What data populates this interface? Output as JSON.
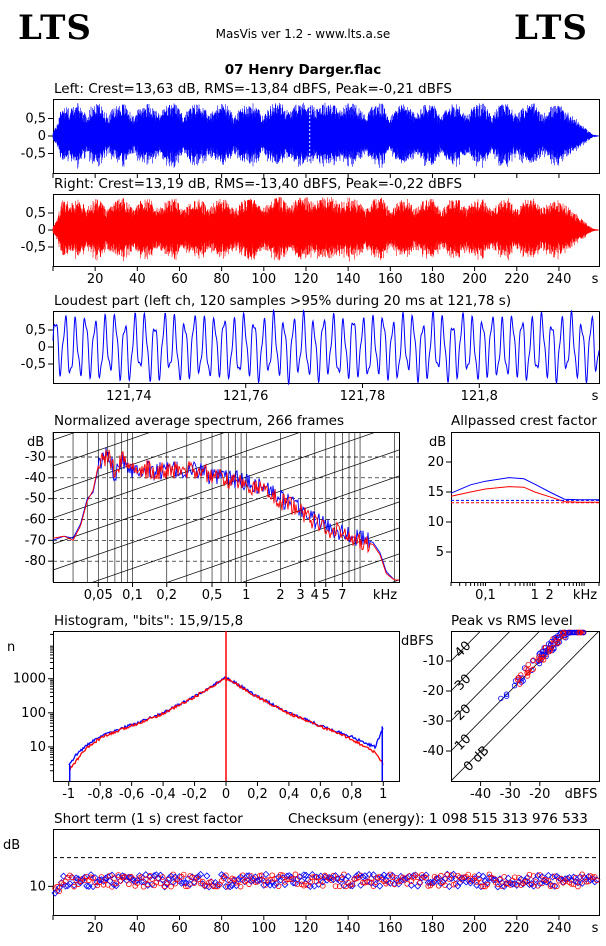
{
  "header": {
    "logo_left": "LTS",
    "logo_right": "LTS",
    "app": "MasVis ver 1.2 - www.lts.a.se",
    "file": "07 Henry Darger.flac"
  },
  "colors": {
    "left": "#0000ff",
    "right": "#ff0000",
    "text": "#000000"
  },
  "chart_data": [
    {
      "id": "left-waveform",
      "type": "area",
      "title": "Left: Crest=13,63 dB, RMS=-13,84 dBFS, Peak=-0,21 dBFS",
      "xlim": [
        0,
        259
      ],
      "ylim": [
        -1,
        1
      ],
      "yticks": [
        "0,5",
        "0",
        "-0,5"
      ],
      "xtick_values": [
        20,
        40,
        60,
        80,
        100,
        120,
        140,
        160,
        180,
        200,
        220,
        240
      ],
      "xunit": "s",
      "marker_x": 121.78,
      "envelope": [
        [
          0,
          0.12
        ],
        [
          2,
          0.35
        ],
        [
          4,
          0.9
        ],
        [
          8,
          0.8
        ],
        [
          12,
          0.95
        ],
        [
          16,
          0.6
        ],
        [
          18,
          0.85
        ],
        [
          22,
          0.95
        ],
        [
          26,
          0.6
        ],
        [
          30,
          0.9
        ],
        [
          34,
          0.95
        ],
        [
          38,
          0.55
        ],
        [
          42,
          0.9
        ],
        [
          46,
          0.95
        ],
        [
          50,
          0.65
        ],
        [
          54,
          0.9
        ],
        [
          58,
          0.95
        ],
        [
          62,
          0.6
        ],
        [
          66,
          0.9
        ],
        [
          70,
          0.95
        ],
        [
          74,
          0.6
        ],
        [
          78,
          0.9
        ],
        [
          82,
          0.95
        ],
        [
          86,
          0.55
        ],
        [
          90,
          0.9
        ],
        [
          95,
          0.95
        ],
        [
          100,
          0.6
        ],
        [
          104,
          0.95
        ],
        [
          108,
          0.98
        ],
        [
          112,
          0.7
        ],
        [
          116,
          0.95
        ],
        [
          120,
          0.99
        ],
        [
          124,
          0.85
        ],
        [
          128,
          0.96
        ],
        [
          132,
          0.99
        ],
        [
          136,
          0.75
        ],
        [
          140,
          0.95
        ],
        [
          144,
          0.92
        ],
        [
          148,
          0.6
        ],
        [
          152,
          0.9
        ],
        [
          156,
          0.95
        ],
        [
          160,
          0.55
        ],
        [
          164,
          0.9
        ],
        [
          168,
          0.95
        ],
        [
          172,
          0.6
        ],
        [
          176,
          0.9
        ],
        [
          180,
          0.95
        ],
        [
          184,
          0.55
        ],
        [
          188,
          0.9
        ],
        [
          192,
          0.95
        ],
        [
          196,
          0.6
        ],
        [
          200,
          0.9
        ],
        [
          204,
          0.95
        ],
        [
          208,
          0.6
        ],
        [
          212,
          0.9
        ],
        [
          216,
          0.95
        ],
        [
          220,
          0.6
        ],
        [
          224,
          0.9
        ],
        [
          228,
          0.95
        ],
        [
          232,
          0.6
        ],
        [
          236,
          0.85
        ],
        [
          240,
          0.9
        ],
        [
          244,
          0.7
        ],
        [
          248,
          0.5
        ],
        [
          252,
          0.25
        ],
        [
          256,
          0.05
        ],
        [
          259,
          0.01
        ]
      ]
    },
    {
      "id": "right-waveform",
      "type": "area",
      "title": "Right: Crest=13,19 dB, RMS=-13,40 dBFS, Peak=-0,22 dBFS",
      "xlim": [
        0,
        259
      ],
      "ylim": [
        -1,
        1
      ],
      "yticks": [
        "0,5",
        "0",
        "-0,5"
      ],
      "xtick_labels": [
        "20",
        "40",
        "60",
        "80",
        "100",
        "120",
        "140",
        "160",
        "180",
        "200",
        "220",
        "240",
        "s"
      ],
      "xtick_values": [
        20,
        40,
        60,
        80,
        100,
        120,
        140,
        160,
        180,
        200,
        220,
        240
      ],
      "envelope": [
        [
          0,
          0.1
        ],
        [
          2,
          0.3
        ],
        [
          4,
          0.9
        ],
        [
          8,
          0.85
        ],
        [
          12,
          0.95
        ],
        [
          16,
          0.65
        ],
        [
          18,
          0.85
        ],
        [
          22,
          0.95
        ],
        [
          26,
          0.6
        ],
        [
          30,
          0.9
        ],
        [
          34,
          0.95
        ],
        [
          38,
          0.6
        ],
        [
          42,
          0.9
        ],
        [
          46,
          0.96
        ],
        [
          50,
          0.65
        ],
        [
          54,
          0.9
        ],
        [
          58,
          0.95
        ],
        [
          62,
          0.6
        ],
        [
          66,
          0.9
        ],
        [
          70,
          0.95
        ],
        [
          74,
          0.65
        ],
        [
          78,
          0.9
        ],
        [
          82,
          0.95
        ],
        [
          86,
          0.6
        ],
        [
          90,
          0.9
        ],
        [
          95,
          0.95
        ],
        [
          100,
          0.65
        ],
        [
          104,
          0.95
        ],
        [
          108,
          0.98
        ],
        [
          112,
          0.7
        ],
        [
          116,
          0.95
        ],
        [
          120,
          0.99
        ],
        [
          124,
          0.85
        ],
        [
          128,
          0.96
        ],
        [
          132,
          0.99
        ],
        [
          136,
          0.8
        ],
        [
          140,
          0.96
        ],
        [
          144,
          0.92
        ],
        [
          148,
          0.6
        ],
        [
          152,
          0.9
        ],
        [
          156,
          0.95
        ],
        [
          160,
          0.6
        ],
        [
          164,
          0.9
        ],
        [
          168,
          0.95
        ],
        [
          172,
          0.65
        ],
        [
          176,
          0.9
        ],
        [
          180,
          0.95
        ],
        [
          184,
          0.6
        ],
        [
          188,
          0.9
        ],
        [
          192,
          0.95
        ],
        [
          196,
          0.65
        ],
        [
          200,
          0.9
        ],
        [
          204,
          0.95
        ],
        [
          208,
          0.6
        ],
        [
          212,
          0.9
        ],
        [
          216,
          0.95
        ],
        [
          220,
          0.6
        ],
        [
          224,
          0.9
        ],
        [
          228,
          0.95
        ],
        [
          232,
          0.65
        ],
        [
          236,
          0.85
        ],
        [
          240,
          0.9
        ],
        [
          244,
          0.7
        ],
        [
          248,
          0.5
        ],
        [
          252,
          0.25
        ],
        [
          256,
          0.05
        ],
        [
          259,
          0.01
        ]
      ]
    },
    {
      "id": "loudest-part",
      "type": "line",
      "title": "Loudest part (left  ch, 120 samples >95% during 20 ms at 121,78 s)",
      "xlim": [
        121.727,
        121.8205
      ],
      "ylim": [
        -1,
        1
      ],
      "yticks": [
        "0,5",
        "0",
        "-0,5"
      ],
      "xtick_labels": [
        "121,74",
        "121,76",
        "121,78",
        "121,8",
        "s"
      ],
      "xtick_values": [
        121.74,
        121.76,
        121.78,
        121.8
      ],
      "cycles": 55
    },
    {
      "id": "average-spectrum",
      "type": "line",
      "title": "Normalized average spectrum, 266 frames",
      "ylabel": "dB",
      "yticks": [
        {
          "v": -30,
          "t": "-30"
        },
        {
          "v": -40,
          "t": "-40"
        },
        {
          "v": -50,
          "t": "-50"
        },
        {
          "v": -60,
          "t": "-60"
        },
        {
          "v": -70,
          "t": "-70"
        },
        {
          "v": -80,
          "t": "-80"
        }
      ],
      "ylim": [
        -90,
        -18
      ],
      "xlim_khz": [
        0.02,
        22
      ],
      "xticks": [
        {
          "v": 0.05,
          "t": "0,05"
        },
        {
          "v": 0.1,
          "t": "0,1"
        },
        {
          "v": 0.2,
          "t": "0,2"
        },
        {
          "v": 0.5,
          "t": "0,5"
        },
        {
          "v": 1,
          "t": "1"
        },
        {
          "v": 2,
          "t": "2"
        },
        {
          "v": 3,
          "t": "3"
        },
        {
          "v": 4,
          "t": "4"
        },
        {
          "v": 5,
          "t": "5"
        },
        {
          "v": 7,
          "t": "7"
        }
      ],
      "xunit": "kHz",
      "left": [
        [
          0.02,
          -70
        ],
        [
          0.025,
          -68
        ],
        [
          0.03,
          -69
        ],
        [
          0.035,
          -62
        ],
        [
          0.04,
          -50
        ],
        [
          0.045,
          -47
        ],
        [
          0.05,
          -35
        ],
        [
          0.06,
          -28
        ],
        [
          0.07,
          -38
        ],
        [
          0.08,
          -30
        ],
        [
          0.1,
          -36
        ],
        [
          0.12,
          -35
        ],
        [
          0.15,
          -37
        ],
        [
          0.2,
          -36
        ],
        [
          0.3,
          -37
        ],
        [
          0.4,
          -36
        ],
        [
          0.5,
          -40
        ],
        [
          0.7,
          -40
        ],
        [
          1.0,
          -42
        ],
        [
          1.5,
          -45
        ],
        [
          2,
          -50
        ],
        [
          3,
          -55
        ],
        [
          4,
          -60
        ],
        [
          5,
          -63
        ],
        [
          7,
          -66
        ],
        [
          10,
          -69
        ],
        [
          13,
          -71
        ],
        [
          15,
          -76
        ],
        [
          17,
          -85
        ],
        [
          20,
          -89
        ]
      ],
      "right": [
        [
          0.02,
          -69
        ],
        [
          0.025,
          -68
        ],
        [
          0.03,
          -70
        ],
        [
          0.035,
          -63
        ],
        [
          0.04,
          -51
        ],
        [
          0.045,
          -46
        ],
        [
          0.05,
          -34
        ],
        [
          0.06,
          -29
        ],
        [
          0.07,
          -37
        ],
        [
          0.08,
          -31
        ],
        [
          0.1,
          -35
        ],
        [
          0.12,
          -36
        ],
        [
          0.15,
          -36
        ],
        [
          0.2,
          -37
        ],
        [
          0.3,
          -36
        ],
        [
          0.4,
          -37
        ],
        [
          0.5,
          -39
        ],
        [
          0.7,
          -41
        ],
        [
          1.0,
          -43
        ],
        [
          1.5,
          -46
        ],
        [
          2,
          -51
        ],
        [
          3,
          -56
        ],
        [
          4,
          -61
        ],
        [
          5,
          -64
        ],
        [
          7,
          -67
        ],
        [
          10,
          -70
        ],
        [
          13,
          -72
        ],
        [
          15,
          -77
        ],
        [
          17,
          -86
        ],
        [
          20,
          -89
        ]
      ]
    },
    {
      "id": "allpassed-crest",
      "type": "line",
      "title": "Allpassed crest factor",
      "ylabel": "dB",
      "yticks": [
        {
          "v": 20,
          "t": "20"
        },
        {
          "v": 15,
          "t": "15"
        },
        {
          "v": 10,
          "t": "10"
        },
        {
          "v": 5,
          "t": "5"
        }
      ],
      "ylim": [
        0,
        25
      ],
      "xlim_khz": [
        0.02,
        20
      ],
      "xticks": [
        {
          "v": 0.1,
          "t": "0,1"
        },
        {
          "v": 1,
          "t": "1"
        },
        {
          "v": 2,
          "t": "2"
        }
      ],
      "xunit": "kHz",
      "left": [
        [
          0.02,
          14.8
        ],
        [
          0.05,
          16.2
        ],
        [
          0.1,
          16.8
        ],
        [
          0.3,
          17.4
        ],
        [
          0.6,
          17.2
        ],
        [
          1,
          16.3
        ],
        [
          2,
          15.0
        ],
        [
          4,
          13.8
        ],
        [
          8,
          13.7
        ],
        [
          20,
          13.7
        ]
      ],
      "right": [
        [
          0.02,
          14.3
        ],
        [
          0.05,
          15.0
        ],
        [
          0.1,
          15.5
        ],
        [
          0.3,
          15.9
        ],
        [
          0.6,
          15.8
        ],
        [
          1,
          15.0
        ],
        [
          2,
          14.2
        ],
        [
          4,
          13.4
        ],
        [
          8,
          13.3
        ],
        [
          20,
          13.3
        ]
      ],
      "left_ref": 13.6,
      "right_ref": 13.2
    },
    {
      "id": "histogram",
      "type": "line",
      "title": "Histogram, \"bits\": 15,9/15,8",
      "ylabel": "n",
      "yticks": [
        {
          "v": 1000,
          "t": "1000"
        },
        {
          "v": 100,
          "t": "100"
        },
        {
          "v": 10,
          "t": "10"
        }
      ],
      "ylim_log10": [
        0,
        4.4
      ],
      "xlim": [
        -1.1,
        1.1
      ],
      "xticks": [
        {
          "v": -1,
          "t": "-1"
        },
        {
          "v": -0.8,
          "t": "-0,8"
        },
        {
          "v": -0.6,
          "t": "-0,6"
        },
        {
          "v": -0.4,
          "t": "-0,4"
        },
        {
          "v": -0.2,
          "t": "-0,2"
        },
        {
          "v": 0,
          "t": "0"
        },
        {
          "v": 0.2,
          "t": "0,2"
        },
        {
          "v": 0.4,
          "t": "0,4"
        },
        {
          "v": 0.6,
          "t": "0,6"
        },
        {
          "v": 0.8,
          "t": "0,8"
        },
        {
          "v": 1,
          "t": "1"
        }
      ],
      "center_peak": 25000,
      "left": [
        [
          -1,
          3
        ],
        [
          -0.95,
          6
        ],
        [
          -0.9,
          10
        ],
        [
          -0.8,
          20
        ],
        [
          -0.6,
          45
        ],
        [
          -0.4,
          100
        ],
        [
          -0.2,
          300
        ],
        [
          0,
          1100
        ],
        [
          0.2,
          300
        ],
        [
          0.4,
          100
        ],
        [
          0.6,
          42
        ],
        [
          0.8,
          20
        ],
        [
          0.9,
          12
        ],
        [
          0.95,
          10
        ],
        [
          1,
          40
        ]
      ],
      "right": [
        [
          -1,
          2
        ],
        [
          -0.95,
          4
        ],
        [
          -0.9,
          8
        ],
        [
          -0.8,
          18
        ],
        [
          -0.6,
          42
        ],
        [
          -0.4,
          95
        ],
        [
          -0.2,
          290
        ],
        [
          0,
          1050
        ],
        [
          0.2,
          290
        ],
        [
          0.4,
          95
        ],
        [
          0.6,
          40
        ],
        [
          0.8,
          17
        ],
        [
          0.9,
          9
        ],
        [
          0.95,
          7
        ],
        [
          1,
          3
        ]
      ]
    },
    {
      "id": "peak-vs-rms",
      "type": "scatter",
      "title": "Peak vs RMS level",
      "ylabel": "dBFS",
      "xlabel": "dBFS",
      "xlim": [
        -50,
        0
      ],
      "ylim": [
        -50,
        0
      ],
      "xticks": [
        {
          "v": -40,
          "t": "-40"
        },
        {
          "v": -30,
          "t": "-30"
        },
        {
          "v": -20,
          "t": "-20"
        }
      ],
      "yticks": [
        {
          "v": -10,
          "t": "-10"
        },
        {
          "v": -20,
          "t": "-20"
        },
        {
          "v": -30,
          "t": "-30"
        },
        {
          "v": -40,
          "t": "-40"
        }
      ],
      "diagonal_labels": [
        "40",
        "30",
        "20",
        "10",
        "0 dB"
      ],
      "points": 120
    },
    {
      "id": "short-term-crest",
      "type": "scatter",
      "title": "Short term (1 s) crest factor",
      "checksum": "Checksum (energy):  1 098 515 313 976 533",
      "ylabel": "dB",
      "yticks": [
        {
          "v": 10,
          "t": "10"
        }
      ],
      "ylim": [
        5,
        20
      ],
      "xlim": [
        0,
        259
      ],
      "ref_level": 15,
      "xtick_labels": [
        "20",
        "40",
        "60",
        "80",
        "100",
        "120",
        "140",
        "160",
        "180",
        "200",
        "220",
        "240",
        "s"
      ],
      "xtick_values": [
        20,
        40,
        60,
        80,
        100,
        120,
        140,
        160,
        180,
        200,
        220,
        240
      ],
      "mean": 11.0
    }
  ]
}
